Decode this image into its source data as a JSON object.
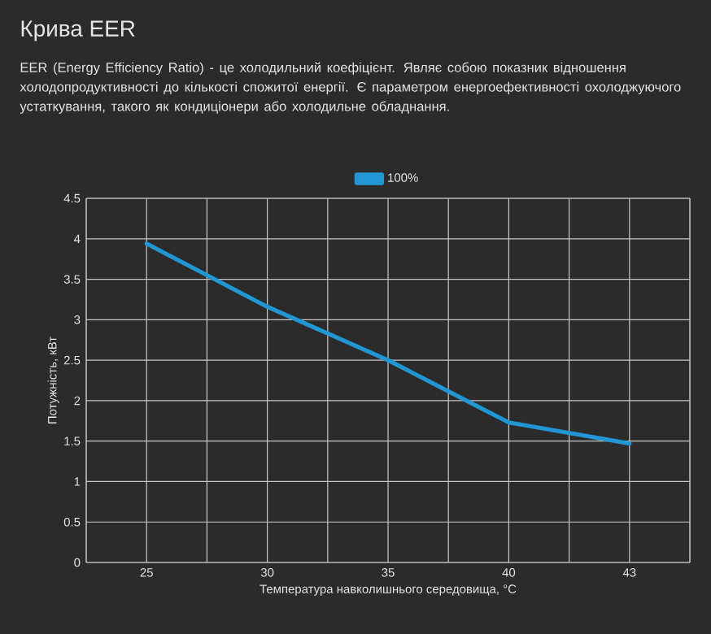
{
  "chart_data": {
    "type": "line",
    "title": "Крива EER",
    "subtitle": "EER (Energy Efficiency Ratio) - це холодильний коефіцієнт. Являє собою показник відношення холодопродуктивності до кількості спожитої енергії. Є параметром енергоефективності охолоджуючого устаткування, такого як кондиціонери або холодильне обладнання.",
    "xlabel": "Температура навколишнього середовища, °C",
    "ylabel": "Потужність, кВт",
    "categories": [
      "25",
      "30",
      "35",
      "40",
      "43"
    ],
    "series": [
      {
        "name": "100%",
        "color": "#2196d3",
        "values": [
          3.94,
          3.16,
          2.5,
          1.73,
          1.47
        ]
      }
    ],
    "ylim": [
      0,
      4.5
    ],
    "yticks": [
      0,
      0.5,
      1,
      1.5,
      2,
      2.5,
      3,
      3.5,
      4,
      4.5
    ],
    "grid": true,
    "legend": "top",
    "marker": "none",
    "line_style": "solid"
  }
}
